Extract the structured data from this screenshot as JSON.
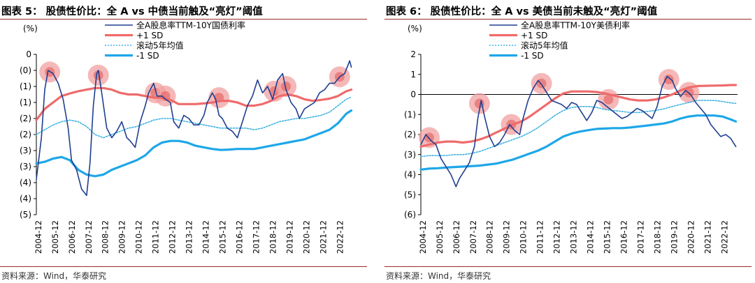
{
  "source_note": "资料来源：Wind，华泰研究",
  "chart_data": [
    {
      "type": "line",
      "title": "图表 5：  股债性价比：全 A vs  中债当前触及“亮灯”阈值",
      "unit_label": "(%)",
      "y_ticks": [
        "0",
        "(0)",
        "(1)",
        "(1)",
        "(2)",
        "(2)",
        "(3)",
        "(3)",
        "(4)",
        "(4)",
        "(5)"
      ],
      "y_tick_values": [
        0.0,
        -0.5,
        -1.0,
        -1.5,
        -2.0,
        -2.5,
        -3.0,
        -3.5,
        -4.0,
        -4.5,
        -5.0
      ],
      "ylim": [
        -5.0,
        0.0
      ],
      "zero_line": false,
      "categories": [
        "2004-12",
        "2005-12",
        "2006-12",
        "2007-12",
        "2008-12",
        "2009-12",
        "2010-12",
        "2011-12",
        "2012-12",
        "2013-12",
        "2014-12",
        "2015-12",
        "2016-12",
        "2017-12",
        "2018-12",
        "2019-12",
        "2020-12",
        "2021-12",
        "2022-12"
      ],
      "x_start": 2004.8,
      "x_end": 2023.7,
      "series": [
        {
          "name": "全A股息率TTM-10Y国债利率",
          "color": "#1f3f8f",
          "role": "main",
          "x": [
            2004.8,
            2005.1,
            2005.3,
            2005.5,
            2005.8,
            2006.1,
            2006.4,
            2006.7,
            2006.9,
            2007.2,
            2007.5,
            2007.8,
            2008.0,
            2008.2,
            2008.4,
            2008.5,
            2008.7,
            2009.0,
            2009.3,
            2009.6,
            2009.9,
            2010.2,
            2010.4,
            2010.7,
            2011.0,
            2011.3,
            2011.5,
            2011.8,
            2012.0,
            2012.3,
            2012.5,
            2012.8,
            2013.0,
            2013.3,
            2013.6,
            2013.9,
            2014.2,
            2014.5,
            2014.8,
            2015.0,
            2015.3,
            2015.5,
            2015.7,
            2015.9,
            2016.2,
            2016.5,
            2016.8,
            2017.1,
            2017.4,
            2017.7,
            2018.0,
            2018.3,
            2018.6,
            2018.9,
            2019.2,
            2019.5,
            2019.7,
            2020.0,
            2020.3,
            2020.5,
            2020.8,
            2021.1,
            2021.4,
            2021.7,
            2022.0,
            2022.3,
            2022.6,
            2022.9,
            2023.2,
            2023.5,
            2023.6
          ],
          "y": [
            -3.9,
            -2.6,
            -1.1,
            -0.5,
            -0.6,
            -0.9,
            -1.4,
            -2.3,
            -3.3,
            -3.6,
            -4.2,
            -4.4,
            -3.4,
            -1.6,
            -0.6,
            -0.5,
            -1.2,
            -2.3,
            -2.6,
            -2.4,
            -2.1,
            -2.6,
            -2.7,
            -2.9,
            -2.1,
            -1.6,
            -1.2,
            -0.9,
            -1.3,
            -1.3,
            -1.4,
            -1.5,
            -2.1,
            -2.3,
            -1.9,
            -2.0,
            -2.2,
            -2.2,
            -1.9,
            -1.5,
            -1.2,
            -1.4,
            -1.9,
            -2.0,
            -2.3,
            -2.4,
            -2.6,
            -2.1,
            -1.6,
            -1.3,
            -0.8,
            -1.2,
            -1.0,
            -1.4,
            -0.8,
            -0.6,
            -1.1,
            -1.5,
            -1.7,
            -2.0,
            -1.7,
            -1.6,
            -1.5,
            -1.2,
            -1.1,
            -0.9,
            -0.9,
            -0.7,
            -0.6,
            -0.2,
            -0.4
          ]
        },
        {
          "name": "+1 SD",
          "color": "#ef6b6b",
          "role": "upper",
          "x": [
            2004.8,
            2005.3,
            2005.8,
            2006.3,
            2006.8,
            2007.3,
            2007.8,
            2008.3,
            2008.8,
            2009.3,
            2009.8,
            2010.3,
            2010.8,
            2011.3,
            2011.8,
            2012.3,
            2012.8,
            2013.3,
            2013.8,
            2014.3,
            2014.8,
            2015.3,
            2015.8,
            2016.3,
            2016.8,
            2017.3,
            2017.8,
            2018.3,
            2018.8,
            2019.3,
            2019.8,
            2020.3,
            2020.8,
            2021.3,
            2021.8,
            2022.3,
            2022.8,
            2023.3,
            2023.6
          ],
          "y": [
            -2.05,
            -1.7,
            -1.5,
            -1.3,
            -1.22,
            -1.15,
            -1.1,
            -1.05,
            -1.05,
            -1.1,
            -1.2,
            -1.25,
            -1.25,
            -1.3,
            -1.35,
            -1.35,
            -1.42,
            -1.55,
            -1.55,
            -1.55,
            -1.53,
            -1.5,
            -1.45,
            -1.45,
            -1.5,
            -1.6,
            -1.6,
            -1.55,
            -1.45,
            -1.3,
            -1.25,
            -1.3,
            -1.4,
            -1.45,
            -1.42,
            -1.38,
            -1.3,
            -1.15,
            -1.1
          ]
        },
        {
          "name": "滚动5年均值",
          "color": "#3fb3e3",
          "role": "mean",
          "x": [
            2004.8,
            2005.3,
            2005.8,
            2006.3,
            2006.8,
            2007.3,
            2007.8,
            2008.3,
            2008.8,
            2009.3,
            2009.8,
            2010.3,
            2010.8,
            2011.3,
            2011.8,
            2012.3,
            2012.8,
            2013.3,
            2013.8,
            2014.3,
            2014.8,
            2015.3,
            2015.8,
            2016.3,
            2016.8,
            2017.3,
            2017.8,
            2018.3,
            2018.8,
            2019.3,
            2019.8,
            2020.3,
            2020.8,
            2021.3,
            2021.8,
            2022.3,
            2022.8,
            2023.3,
            2023.6
          ],
          "y": [
            -2.5,
            -2.35,
            -2.2,
            -2.1,
            -2.05,
            -2.1,
            -2.25,
            -2.5,
            -2.6,
            -2.5,
            -2.4,
            -2.3,
            -2.25,
            -2.15,
            -2.05,
            -2.0,
            -2.0,
            -2.05,
            -2.1,
            -2.15,
            -2.2,
            -2.25,
            -2.3,
            -2.3,
            -2.3,
            -2.3,
            -2.35,
            -2.3,
            -2.2,
            -2.1,
            -2.05,
            -2.0,
            -2.0,
            -1.95,
            -1.9,
            -1.8,
            -1.6,
            -1.4,
            -1.33
          ]
        },
        {
          "name": "-1 SD",
          "color": "#1ea7e8",
          "role": "lower",
          "x": [
            2004.8,
            2005.3,
            2005.8,
            2006.3,
            2006.8,
            2007.3,
            2007.8,
            2008.3,
            2008.8,
            2009.3,
            2009.8,
            2010.3,
            2010.8,
            2011.3,
            2011.8,
            2012.3,
            2012.8,
            2013.3,
            2013.8,
            2014.3,
            2014.8,
            2015.3,
            2015.8,
            2016.3,
            2016.8,
            2017.3,
            2017.8,
            2018.3,
            2018.8,
            2019.3,
            2019.8,
            2020.3,
            2020.8,
            2021.3,
            2021.8,
            2022.3,
            2022.8,
            2023.3,
            2023.6
          ],
          "y": [
            -3.4,
            -3.35,
            -3.25,
            -3.2,
            -3.3,
            -3.6,
            -3.75,
            -3.8,
            -3.75,
            -3.6,
            -3.5,
            -3.4,
            -3.3,
            -3.15,
            -2.9,
            -2.75,
            -2.7,
            -2.7,
            -2.75,
            -2.85,
            -2.9,
            -2.95,
            -2.98,
            -2.97,
            -2.95,
            -2.95,
            -2.95,
            -2.9,
            -2.85,
            -2.8,
            -2.75,
            -2.7,
            -2.65,
            -2.55,
            -2.45,
            -2.35,
            -2.15,
            -1.85,
            -1.75
          ]
        }
      ],
      "highlights": [
        {
          "x": 2005.6,
          "y": -0.55
        },
        {
          "x": 2008.5,
          "y": -0.65
        },
        {
          "x": 2011.9,
          "y": -1.2
        },
        {
          "x": 2012.5,
          "y": -1.3
        },
        {
          "x": 2015.7,
          "y": -1.35
        },
        {
          "x": 2019.0,
          "y": -1.15
        },
        {
          "x": 2019.7,
          "y": -1.0
        },
        {
          "x": 2022.9,
          "y": -0.7
        }
      ]
    },
    {
      "type": "line",
      "title": "图表 6：  股债性价比：全 A vs  美债当前未触及“亮灯”阈值",
      "unit_label": "(%)",
      "y_ticks": [
        "2",
        "1",
        "0",
        "(1)",
        "(2)",
        "(3)",
        "(4)",
        "(5)",
        "(6)"
      ],
      "y_tick_values": [
        2,
        1,
        0,
        -1,
        -2,
        -3,
        -4,
        -5,
        -6
      ],
      "ylim": [
        -6,
        2
      ],
      "zero_line": true,
      "categories": [
        "2004-12",
        "2005-12",
        "2006-12",
        "2007-12",
        "2008-12",
        "2009-12",
        "2010-12",
        "2011-12",
        "2012-12",
        "2013-12",
        "2014-12",
        "2015-12",
        "2016-12",
        "2017-12",
        "2018-12",
        "2019-12",
        "2020-12",
        "2021-12",
        "2022-12"
      ],
      "x_start": 2004.8,
      "x_end": 2023.7,
      "series": [
        {
          "name": "全A股息率TTM-10Y美债利率",
          "color": "#1f3f8f",
          "role": "main",
          "x": [
            2004.8,
            2005.1,
            2005.4,
            2005.7,
            2006.0,
            2006.3,
            2006.6,
            2006.9,
            2007.1,
            2007.4,
            2007.7,
            2008.0,
            2008.2,
            2008.4,
            2008.6,
            2008.9,
            2009.2,
            2009.5,
            2009.8,
            2010.1,
            2010.4,
            2010.7,
            2010.9,
            2011.2,
            2011.5,
            2011.8,
            2012.0,
            2012.3,
            2012.6,
            2012.9,
            2013.2,
            2013.5,
            2013.8,
            2014.1,
            2014.4,
            2014.7,
            2015.0,
            2015.3,
            2015.6,
            2015.9,
            2016.2,
            2016.5,
            2016.8,
            2017.1,
            2017.4,
            2017.7,
            2018.0,
            2018.3,
            2018.6,
            2018.9,
            2019.2,
            2019.5,
            2019.8,
            2020.0,
            2020.3,
            2020.6,
            2020.9,
            2021.2,
            2021.5,
            2021.8,
            2022.1,
            2022.4,
            2022.7,
            2023.0,
            2023.3,
            2023.6
          ],
          "y": [
            -2.5,
            -2.0,
            -2.3,
            -2.5,
            -3.2,
            -3.6,
            -4.0,
            -4.6,
            -4.2,
            -3.8,
            -3.4,
            -2.6,
            -1.2,
            -0.3,
            -1.1,
            -2.1,
            -2.6,
            -2.4,
            -2.0,
            -1.5,
            -1.8,
            -2.0,
            -1.2,
            -0.3,
            0.3,
            0.7,
            0.5,
            0.1,
            -0.3,
            -0.4,
            -0.5,
            -0.7,
            -0.4,
            -0.5,
            -0.9,
            -1.3,
            -0.9,
            -0.3,
            -0.4,
            -0.6,
            -0.8,
            -1.0,
            -1.2,
            -1.1,
            -0.9,
            -0.7,
            -0.8,
            -1.0,
            -1.2,
            -0.6,
            0.4,
            0.9,
            0.7,
            0.3,
            -0.1,
            0.2,
            0.0,
            -0.4,
            -0.7,
            -1.0,
            -1.5,
            -1.8,
            -2.1,
            -2.0,
            -2.2,
            -2.6
          ]
        },
        {
          "name": "+1 SD",
          "color": "#ef6b6b",
          "role": "upper",
          "x": [
            2004.8,
            2005.3,
            2005.8,
            2006.3,
            2006.8,
            2007.3,
            2007.8,
            2008.3,
            2008.8,
            2009.3,
            2009.8,
            2010.3,
            2010.8,
            2011.3,
            2011.8,
            2012.3,
            2012.8,
            2013.3,
            2013.8,
            2014.3,
            2014.8,
            2015.3,
            2015.8,
            2016.3,
            2016.8,
            2017.3,
            2017.8,
            2018.3,
            2018.8,
            2019.3,
            2019.8,
            2020.3,
            2020.8,
            2021.3,
            2021.8,
            2022.3,
            2022.8,
            2023.3,
            2023.6
          ],
          "y": [
            -2.6,
            -2.5,
            -2.4,
            -2.35,
            -2.35,
            -2.4,
            -2.35,
            -2.25,
            -2.1,
            -1.9,
            -1.7,
            -1.5,
            -1.35,
            -1.1,
            -0.8,
            -0.5,
            -0.2,
            0.05,
            0.15,
            0.15,
            0.15,
            0.12,
            0.05,
            -0.05,
            -0.15,
            -0.25,
            -0.3,
            -0.3,
            -0.25,
            -0.15,
            0.0,
            0.2,
            0.35,
            0.42,
            0.43,
            0.44,
            0.45,
            0.47,
            0.47
          ]
        },
        {
          "name": "滚动5年均值",
          "color": "#3fb3e3",
          "role": "mean",
          "x": [
            2004.8,
            2005.3,
            2005.8,
            2006.3,
            2006.8,
            2007.3,
            2007.8,
            2008.3,
            2008.8,
            2009.3,
            2009.8,
            2010.3,
            2010.8,
            2011.3,
            2011.8,
            2012.3,
            2012.8,
            2013.3,
            2013.8,
            2014.3,
            2014.8,
            2015.3,
            2015.8,
            2016.3,
            2016.8,
            2017.3,
            2017.8,
            2018.3,
            2018.8,
            2019.3,
            2019.8,
            2020.3,
            2020.8,
            2021.3,
            2021.8,
            2022.3,
            2022.8,
            2023.3,
            2023.6
          ],
          "y": [
            -3.1,
            -3.05,
            -3.05,
            -3.05,
            -3.0,
            -3.0,
            -2.95,
            -2.85,
            -2.7,
            -2.55,
            -2.4,
            -2.25,
            -2.1,
            -1.9,
            -1.65,
            -1.35,
            -1.05,
            -0.8,
            -0.65,
            -0.6,
            -0.6,
            -0.65,
            -0.75,
            -0.8,
            -0.85,
            -0.9,
            -0.9,
            -0.85,
            -0.8,
            -0.72,
            -0.6,
            -0.5,
            -0.4,
            -0.3,
            -0.3,
            -0.3,
            -0.35,
            -0.42,
            -0.45
          ]
        },
        {
          "name": "-1 SD",
          "color": "#1ea7e8",
          "role": "lower",
          "x": [
            2004.8,
            2005.3,
            2005.8,
            2006.3,
            2006.8,
            2007.3,
            2007.8,
            2008.3,
            2008.8,
            2009.3,
            2009.8,
            2010.3,
            2010.8,
            2011.3,
            2011.8,
            2012.3,
            2012.8,
            2013.3,
            2013.8,
            2014.3,
            2014.8,
            2015.3,
            2015.8,
            2016.3,
            2016.8,
            2017.3,
            2017.8,
            2018.3,
            2018.8,
            2019.3,
            2019.8,
            2020.3,
            2020.8,
            2021.3,
            2021.8,
            2022.3,
            2022.8,
            2023.3,
            2023.6
          ],
          "y": [
            -3.75,
            -3.7,
            -3.68,
            -3.65,
            -3.62,
            -3.6,
            -3.58,
            -3.55,
            -3.5,
            -3.45,
            -3.35,
            -3.25,
            -3.1,
            -2.95,
            -2.8,
            -2.6,
            -2.35,
            -2.1,
            -1.95,
            -1.85,
            -1.78,
            -1.72,
            -1.7,
            -1.68,
            -1.68,
            -1.65,
            -1.6,
            -1.55,
            -1.5,
            -1.45,
            -1.35,
            -1.2,
            -1.1,
            -1.05,
            -1.05,
            -1.05,
            -1.1,
            -1.25,
            -1.35
          ]
        }
      ],
      "highlights": [
        {
          "x": 2005.3,
          "y": -2.15
        },
        {
          "x": 2008.3,
          "y": -0.45
        },
        {
          "x": 2010.2,
          "y": -1.5
        },
        {
          "x": 2012.0,
          "y": 0.55
        },
        {
          "x": 2016.0,
          "y": -0.25
        },
        {
          "x": 2019.6,
          "y": 0.75
        },
        {
          "x": 2020.8,
          "y": 0.1
        }
      ]
    }
  ]
}
